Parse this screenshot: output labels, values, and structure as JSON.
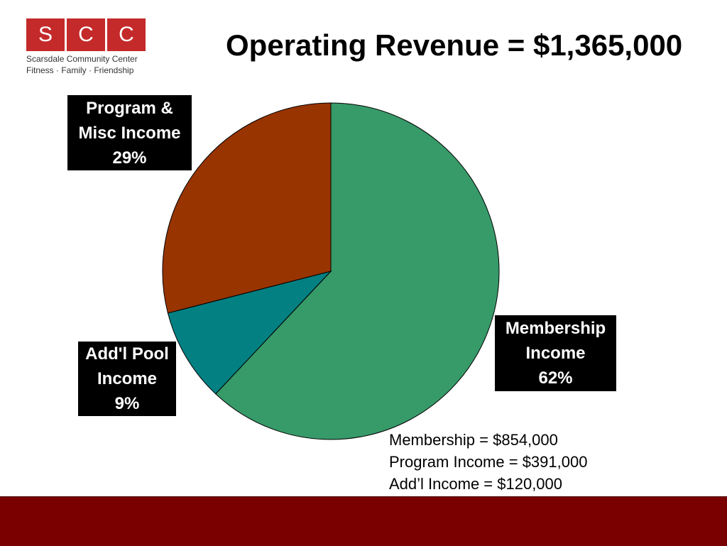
{
  "logo": {
    "letters": [
      "S",
      "C",
      "C"
    ],
    "box_color": "#c42a2a",
    "line1": "Scarsdale Community Center",
    "line2": "Fitness · Family · Friendship"
  },
  "title": "Operating Revenue = $1,365,000",
  "chart_data": {
    "type": "pie",
    "title": "Operating Revenue = $1,365,000",
    "slices": [
      {
        "name": "Membership Income",
        "label_lines": [
          "Membership",
          "Income",
          "62%"
        ],
        "percent": 62,
        "value": 854000,
        "color": "#379a69"
      },
      {
        "name": "Add'l Pool Income",
        "label_lines": [
          "Add'l Pool",
          "Income",
          "9%"
        ],
        "percent": 9,
        "value": 120000,
        "color": "#028082"
      },
      {
        "name": "Program & Misc Income",
        "label_lines": [
          "Program &",
          "Misc Income",
          "29%"
        ],
        "percent": 29,
        "value": 391000,
        "color": "#983400"
      }
    ],
    "start": "12 o'clock",
    "direction": "clockwise",
    "legend": "none",
    "breakdown": [
      "Membership = $854,000",
      "Program Income = $391,000",
      "Add’l Income = $120,000"
    ]
  },
  "footer": {
    "color": "#7a0000"
  }
}
